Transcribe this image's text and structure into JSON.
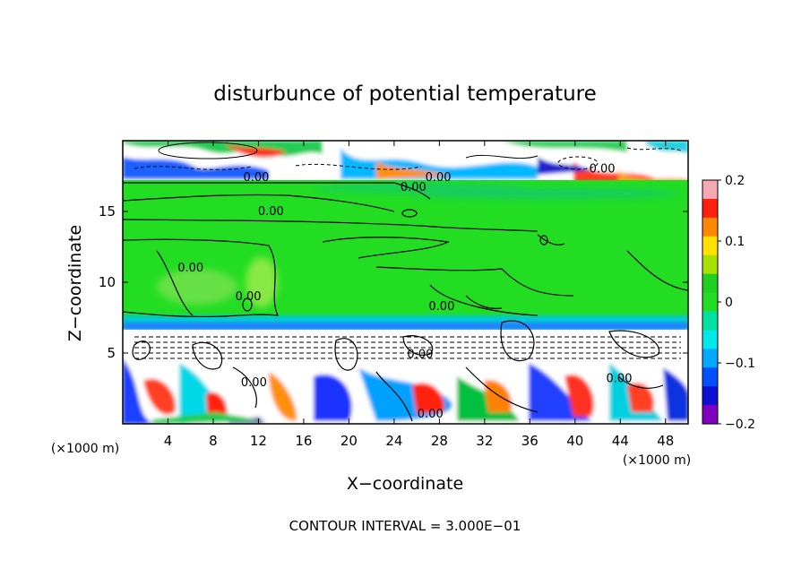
{
  "chart_data": {
    "type": "heatmap",
    "title": "disturbunce of potential temperature",
    "xlabel": "X−coordinate",
    "ylabel": "Z−coordinate",
    "x_unit_label": "(×1000 m)",
    "y_unit_label": "(×1000 m)",
    "xlim": [
      0,
      50
    ],
    "ylim": [
      0,
      20
    ],
    "x_ticks": [
      4,
      8,
      12,
      16,
      20,
      24,
      28,
      32,
      36,
      40,
      44,
      48
    ],
    "y_ticks": [
      5,
      10,
      15
    ],
    "colorbar": {
      "ticks": [
        "0.2",
        "0.1",
        "0",
        "−0.1",
        "−0.2"
      ],
      "values": [
        0.2,
        0.1,
        0,
        -0.1,
        -0.2
      ],
      "colors": [
        "#f4a8b4",
        "#ff2010",
        "#ff8800",
        "#ffe000",
        "#a8e000",
        "#20d020",
        "#22dd22",
        "#00e0a0",
        "#00e8e8",
        "#00a8ff",
        "#0050ff",
        "#1010d0",
        "#8000c0"
      ]
    },
    "layers": [
      {
        "z_range": [
          17.3,
          20
        ],
        "description_value": "mixed",
        "color": "#ffffff"
      },
      {
        "z_range": [
          6.5,
          17.3
        ],
        "value": 0.0,
        "color": "#22dd22"
      },
      {
        "z_range": [
          6.2,
          6.5
        ],
        "value": -0.06,
        "color": "#00e8e8"
      },
      {
        "z_range": [
          4.2,
          6.2
        ],
        "value": 0.0,
        "color": "#ffffff"
      },
      {
        "z_range": [
          0,
          4.2
        ],
        "description_value": "mixed",
        "color": "#ffffff"
      }
    ],
    "contour_labels": [
      {
        "text": "0.00",
        "x": 11.8,
        "z": 17.4
      },
      {
        "text": "0.00",
        "x": 25.7,
        "z": 16.7
      },
      {
        "text": "0.00",
        "x": 27.9,
        "z": 17.4
      },
      {
        "text": "0.00",
        "x": 42.4,
        "z": 18.0
      },
      {
        "text": "0.00",
        "x": 13.1,
        "z": 15.0
      },
      {
        "text": "0.00",
        "x": 6.0,
        "z": 11.0
      },
      {
        "text": "0.00",
        "x": 11.1,
        "z": 9.0
      },
      {
        "text": "0.00",
        "x": 28.2,
        "z": 8.3
      },
      {
        "text": "0.00",
        "x": 26.3,
        "z": 4.9
      },
      {
        "text": "0.00",
        "x": 43.9,
        "z": 3.2
      },
      {
        "text": "0.00",
        "x": 27.2,
        "z": 0.7
      },
      {
        "text": "0.00",
        "x": 11.6,
        "z": 2.9
      }
    ],
    "footer": "CONTOUR INTERVAL = 3.000E−01"
  }
}
